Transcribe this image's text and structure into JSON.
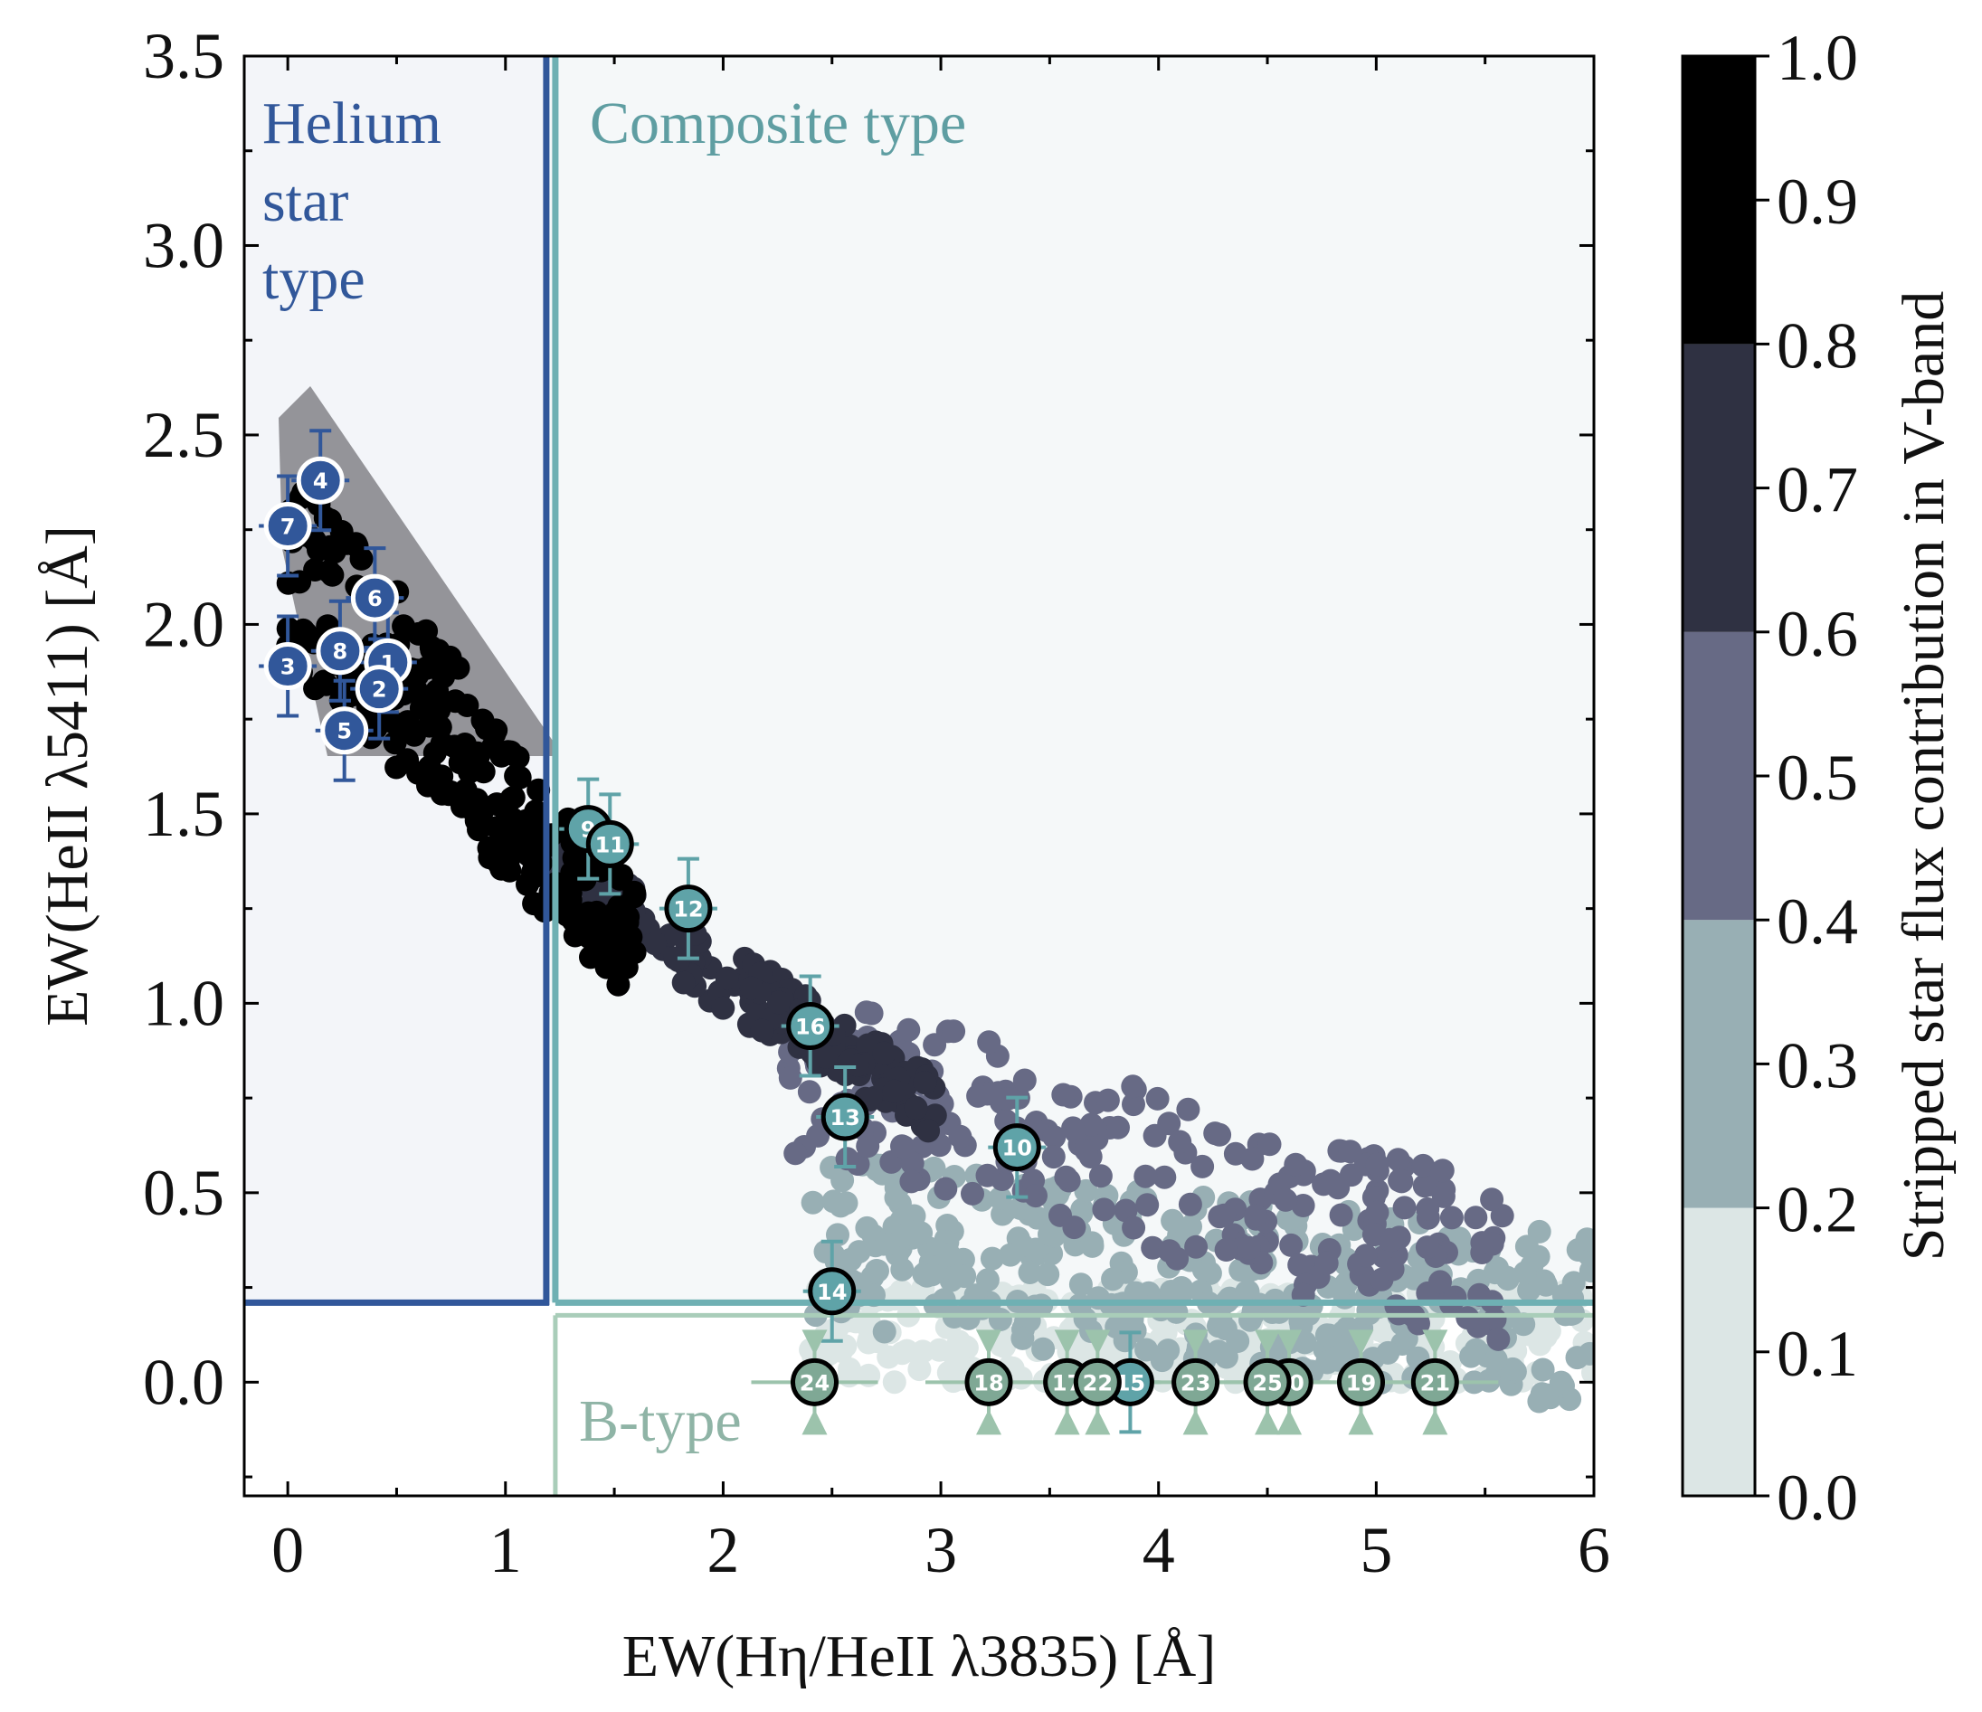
{
  "chart_data": {
    "type": "scatter",
    "xlabel": "EW(Hη/HeII λ3835) [Å]",
    "ylabel": "EW(HeII λ5411) [Å]",
    "xlim": [
      -0.2,
      6.0
    ],
    "ylim": [
      -0.3,
      3.5
    ],
    "xticks": [
      "0",
      "1",
      "2",
      "3",
      "4",
      "5",
      "6"
    ],
    "yticks": [
      "0.0",
      "0.5",
      "1.0",
      "1.5",
      "2.0",
      "2.5",
      "3.0",
      "3.5"
    ],
    "colorbar": {
      "label": "Stripped star flux contribution in V-band",
      "ticks": [
        "0.0",
        "0.1",
        "0.2",
        "0.3",
        "0.4",
        "0.5",
        "0.6",
        "0.7",
        "0.8",
        "0.9",
        "1.0"
      ],
      "bins": [
        {
          "range": [
            0.0,
            0.2
          ],
          "color": "#dce6e5"
        },
        {
          "range": [
            0.2,
            0.4
          ],
          "color": "#98afb4"
        },
        {
          "range": [
            0.4,
            0.6
          ],
          "color": "#676a85"
        },
        {
          "range": [
            0.6,
            0.8
          ],
          "color": "#2f3142"
        },
        {
          "range": [
            0.8,
            1.0
          ],
          "color": "#000000"
        }
      ]
    },
    "regions": [
      {
        "label_lines": [
          "Helium",
          "star",
          "type"
        ],
        "color": "#31579a",
        "x_max": 1.2,
        "y_min": 0.21
      },
      {
        "label_lines": [
          "Composite type"
        ],
        "color": "#5f9ea2",
        "x_min": 1.2,
        "y_min": 0.21
      },
      {
        "label_lines": [
          "B-type"
        ],
        "color": "#8fb4a6",
        "x_min": 1.2,
        "y_max": 0.21
      }
    ],
    "model_grid_description_counts": {
      "bins": 5
    },
    "observed_stars": [
      {
        "id": "1",
        "x": 0.46,
        "y": 1.9,
        "group": "helium"
      },
      {
        "id": "2",
        "x": 0.42,
        "y": 1.83,
        "group": "helium"
      },
      {
        "id": "3",
        "x": 0.0,
        "y": 1.89,
        "group": "helium"
      },
      {
        "id": "4",
        "x": 0.15,
        "y": 2.38,
        "group": "helium"
      },
      {
        "id": "5",
        "x": 0.26,
        "y": 1.72,
        "group": "helium"
      },
      {
        "id": "6",
        "x": 0.4,
        "y": 2.07,
        "group": "helium"
      },
      {
        "id": "7",
        "x": 0.0,
        "y": 2.26,
        "group": "helium"
      },
      {
        "id": "8",
        "x": 0.24,
        "y": 1.93,
        "group": "helium"
      },
      {
        "id": "9",
        "x": 1.38,
        "y": 1.46,
        "group": "composite"
      },
      {
        "id": "10",
        "x": 3.35,
        "y": 0.62,
        "group": "composite"
      },
      {
        "id": "11",
        "x": 1.48,
        "y": 1.42,
        "group": "composite"
      },
      {
        "id": "12",
        "x": 1.84,
        "y": 1.25,
        "group": "composite"
      },
      {
        "id": "13",
        "x": 2.56,
        "y": 0.7,
        "group": "composite"
      },
      {
        "id": "14",
        "x": 2.5,
        "y": 0.24,
        "group": "composite"
      },
      {
        "id": "15",
        "x": 3.87,
        "y": 0.0,
        "group": "composite"
      },
      {
        "id": "16",
        "x": 2.4,
        "y": 0.94,
        "group": "composite"
      },
      {
        "id": "17",
        "x": 3.58,
        "y": 0.0,
        "group": "btype"
      },
      {
        "id": "18",
        "x": 3.22,
        "y": 0.0,
        "group": "btype"
      },
      {
        "id": "19",
        "x": 4.93,
        "y": 0.0,
        "group": "btype"
      },
      {
        "id": "20",
        "x": 4.6,
        "y": 0.0,
        "group": "btype"
      },
      {
        "id": "21",
        "x": 5.27,
        "y": 0.0,
        "group": "btype"
      },
      {
        "id": "22",
        "x": 3.72,
        "y": 0.0,
        "group": "btype"
      },
      {
        "id": "23",
        "x": 4.17,
        "y": 0.0,
        "group": "btype"
      },
      {
        "id": "24",
        "x": 2.42,
        "y": 0.0,
        "group": "btype"
      },
      {
        "id": "25",
        "x": 4.5,
        "y": 0.0,
        "group": "btype"
      }
    ]
  }
}
